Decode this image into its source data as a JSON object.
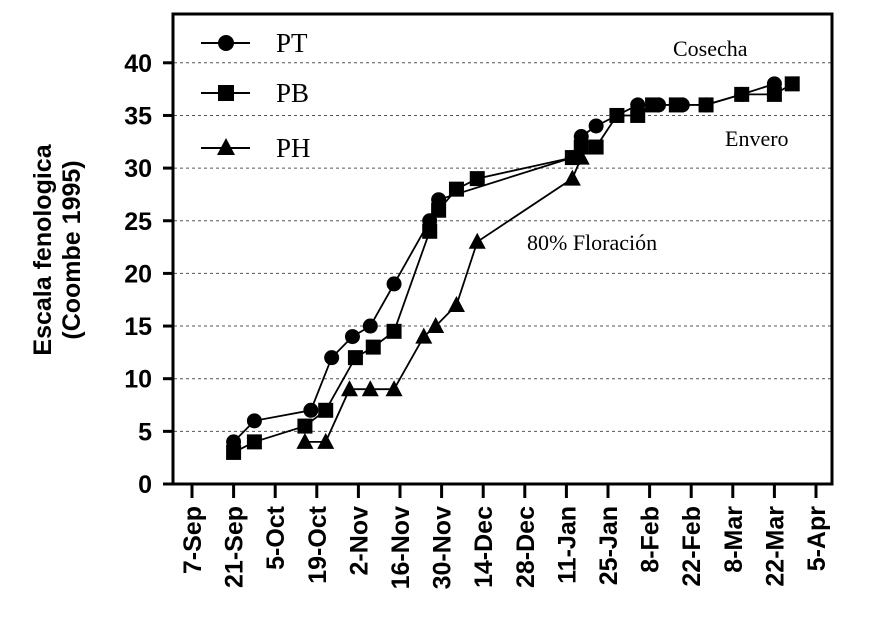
{
  "chart_data": {
    "type": "line",
    "ylabel_line1": "Escala fenologica",
    "ylabel_line2": "(Coombe 1995)",
    "ylim": [
      0,
      43
    ],
    "yticks": [
      0,
      5,
      10,
      15,
      20,
      25,
      30,
      35,
      40
    ],
    "grid": "horizontal dashed at y ticks",
    "x_axis": {
      "unit": "days since 7-Sep",
      "range": [
        0,
        210
      ],
      "ticks": [
        {
          "day": 0,
          "label": "7-Sep"
        },
        {
          "day": 14,
          "label": "21-Sep"
        },
        {
          "day": 28,
          "label": "5-Oct"
        },
        {
          "day": 42,
          "label": "19-Oct"
        },
        {
          "day": 56,
          "label": "2-Nov"
        },
        {
          "day": 70,
          "label": "16-Nov"
        },
        {
          "day": 84,
          "label": "30-Nov"
        },
        {
          "day": 98,
          "label": "14-Dec"
        },
        {
          "day": 112,
          "label": "28-Dec"
        },
        {
          "day": 126,
          "label": "11-Jan"
        },
        {
          "day": 140,
          "label": "25-Jan"
        },
        {
          "day": 154,
          "label": "8-Feb"
        },
        {
          "day": 168,
          "label": "22-Feb"
        },
        {
          "day": 182,
          "label": "8-Mar"
        },
        {
          "day": 196,
          "label": "22-Mar"
        },
        {
          "day": 210,
          "label": "5-Apr"
        }
      ]
    },
    "legend_position": "top-left",
    "series": [
      {
        "name": "PT",
        "marker": "circle",
        "points": [
          [
            14,
            4
          ],
          [
            21,
            6
          ],
          [
            40,
            7
          ],
          [
            47,
            12
          ],
          [
            54,
            14
          ],
          [
            60,
            15
          ],
          [
            68,
            19
          ],
          [
            80,
            25
          ],
          [
            83,
            27
          ],
          [
            128,
            31
          ],
          [
            131,
            33
          ],
          [
            136,
            34
          ],
          [
            143,
            35
          ],
          [
            150,
            36
          ],
          [
            157,
            36
          ],
          [
            165,
            36
          ],
          [
            173,
            36
          ],
          [
            185,
            37
          ],
          [
            196,
            38
          ]
        ]
      },
      {
        "name": "PB",
        "marker": "square",
        "points": [
          [
            14,
            3
          ],
          [
            21,
            4
          ],
          [
            38,
            5.5
          ],
          [
            45,
            7
          ],
          [
            55,
            12
          ],
          [
            61,
            13
          ],
          [
            68,
            14.5
          ],
          [
            80,
            24
          ],
          [
            83,
            26
          ],
          [
            89,
            28
          ],
          [
            96,
            29
          ],
          [
            128,
            31
          ],
          [
            131,
            32
          ],
          [
            136,
            32
          ],
          [
            143,
            35
          ],
          [
            150,
            35
          ],
          [
            155,
            36
          ],
          [
            163,
            36
          ],
          [
            173,
            36
          ],
          [
            185,
            37
          ],
          [
            196,
            37
          ],
          [
            202,
            38
          ]
        ]
      },
      {
        "name": "PH",
        "marker": "triangle",
        "points": [
          [
            38,
            4
          ],
          [
            45,
            4
          ],
          [
            53,
            9
          ],
          [
            60,
            9
          ],
          [
            68,
            9
          ],
          [
            78,
            14
          ],
          [
            82,
            15
          ],
          [
            89,
            17
          ],
          [
            96,
            23
          ],
          [
            128,
            29
          ],
          [
            131,
            31
          ]
        ]
      }
    ],
    "annotations": [
      {
        "text": "Cosecha",
        "near": "top-right"
      },
      {
        "text": "Envero",
        "near": "right, below 35"
      },
      {
        "text": "80% Floración",
        "near": "center, around 23"
      }
    ]
  }
}
